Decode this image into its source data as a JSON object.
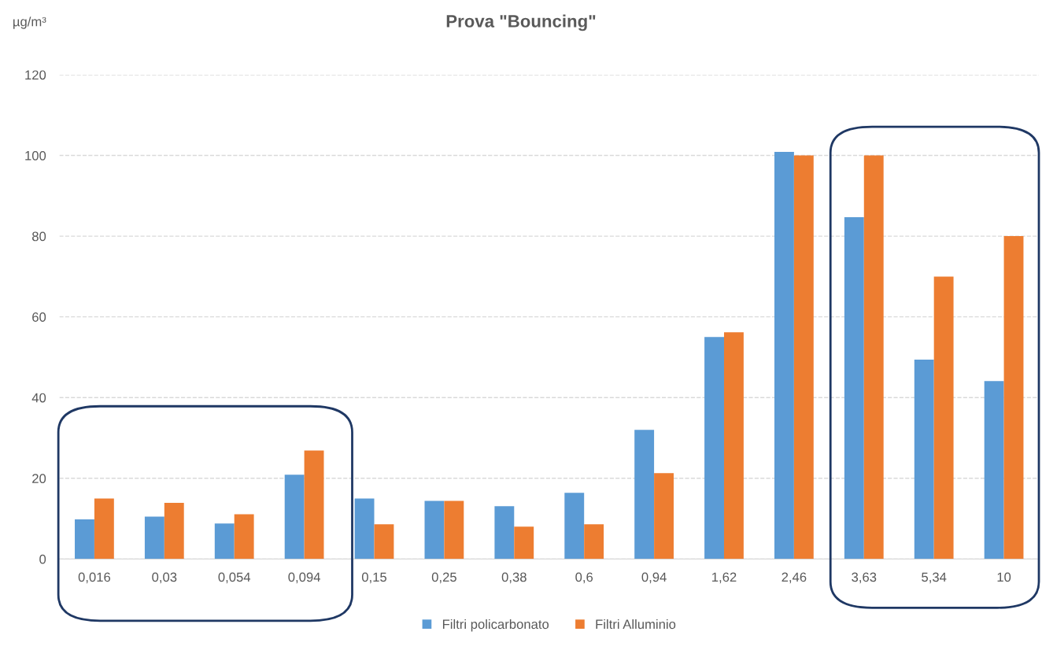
{
  "chart_data": {
    "type": "bar",
    "title": "Prova \"Bouncing\"",
    "ylabel": "µg/m³",
    "categories": [
      "0,016",
      "0,03",
      "0,054",
      "0,094",
      "0,15",
      "0,25",
      "0,38",
      "0,6",
      "0,94",
      "1,62",
      "2,46",
      "3,63",
      "5,34",
      "10"
    ],
    "series": [
      {
        "name": "Filtri policarbonato",
        "color": "#5b9bd5",
        "values": [
          9.8,
          10.5,
          8.8,
          20.9,
          15.0,
          14.4,
          13.1,
          16.4,
          32.0,
          55.0,
          100.9,
          84.7,
          49.4,
          44.1
        ]
      },
      {
        "name": "Filtri Alluminio",
        "color": "#ed7d31",
        "values": [
          15.0,
          13.9,
          11.1,
          26.9,
          8.6,
          14.4,
          8.0,
          8.6,
          21.3,
          56.2,
          100,
          100,
          70,
          80
        ]
      }
    ],
    "ylim": [
      0,
      120
    ],
    "yticks": [
      0,
      20,
      40,
      60,
      80,
      100,
      120
    ],
    "grid": "y",
    "legend": "bottom"
  }
}
